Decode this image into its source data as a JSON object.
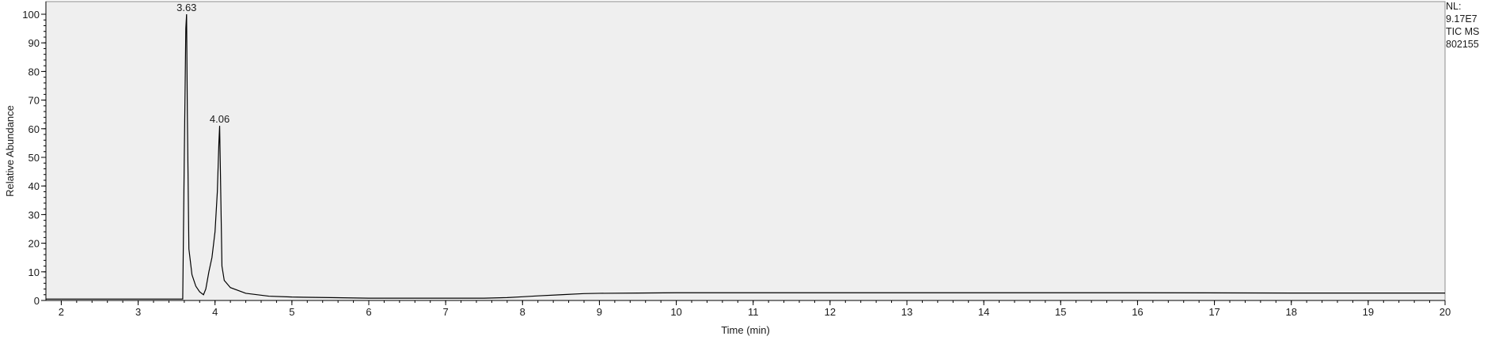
{
  "chart_data": {
    "type": "line",
    "xlabel": "Time (min)",
    "ylabel": "Relative Abundance",
    "xlim": [
      1.8,
      20
    ],
    "ylim": [
      0,
      100
    ],
    "x_ticks": [
      2,
      3,
      4,
      5,
      6,
      7,
      8,
      9,
      10,
      11,
      12,
      13,
      14,
      15,
      16,
      17,
      18,
      19,
      20
    ],
    "y_ticks": [
      0,
      10,
      20,
      30,
      40,
      50,
      60,
      70,
      80,
      90,
      100
    ],
    "grid": false,
    "background_color": "#efefef",
    "line_color": "#000000",
    "series": [
      {
        "points": [
          [
            1.8,
            0.5
          ],
          [
            3.0,
            0.5
          ],
          [
            3.58,
            0.5
          ],
          [
            3.6,
            50
          ],
          [
            3.62,
            95
          ],
          [
            3.63,
            100
          ],
          [
            3.64,
            65
          ],
          [
            3.66,
            18
          ],
          [
            3.7,
            9
          ],
          [
            3.75,
            5
          ],
          [
            3.8,
            3
          ],
          [
            3.85,
            2
          ],
          [
            3.88,
            4
          ],
          [
            3.92,
            10
          ],
          [
            3.96,
            15
          ],
          [
            4.0,
            24
          ],
          [
            4.03,
            38
          ],
          [
            4.05,
            55
          ],
          [
            4.06,
            61
          ],
          [
            4.07,
            45
          ],
          [
            4.09,
            12
          ],
          [
            4.12,
            7
          ],
          [
            4.2,
            4.5
          ],
          [
            4.4,
            2.5
          ],
          [
            4.7,
            1.5
          ],
          [
            5.0,
            1.2
          ],
          [
            5.5,
            1.0
          ],
          [
            6.0,
            0.8
          ],
          [
            6.5,
            0.8
          ],
          [
            7.0,
            0.8
          ],
          [
            7.5,
            0.8
          ],
          [
            7.8,
            1.0
          ],
          [
            8.0,
            1.3
          ],
          [
            8.2,
            1.6
          ],
          [
            8.5,
            2.0
          ],
          [
            8.8,
            2.4
          ],
          [
            9.0,
            2.5
          ],
          [
            9.5,
            2.6
          ],
          [
            10,
            2.7
          ],
          [
            12,
            2.7
          ],
          [
            14,
            2.7
          ],
          [
            16,
            2.7
          ],
          [
            18,
            2.6
          ],
          [
            20,
            2.6
          ]
        ]
      }
    ],
    "peak_labels": [
      {
        "text": "3.63",
        "x": 3.63,
        "y": 100
      },
      {
        "text": "4.06",
        "x": 4.06,
        "y": 61
      }
    ]
  },
  "info_panel": [
    "NL:",
    "9.17E7",
    "TIC  MS",
    "802155"
  ]
}
